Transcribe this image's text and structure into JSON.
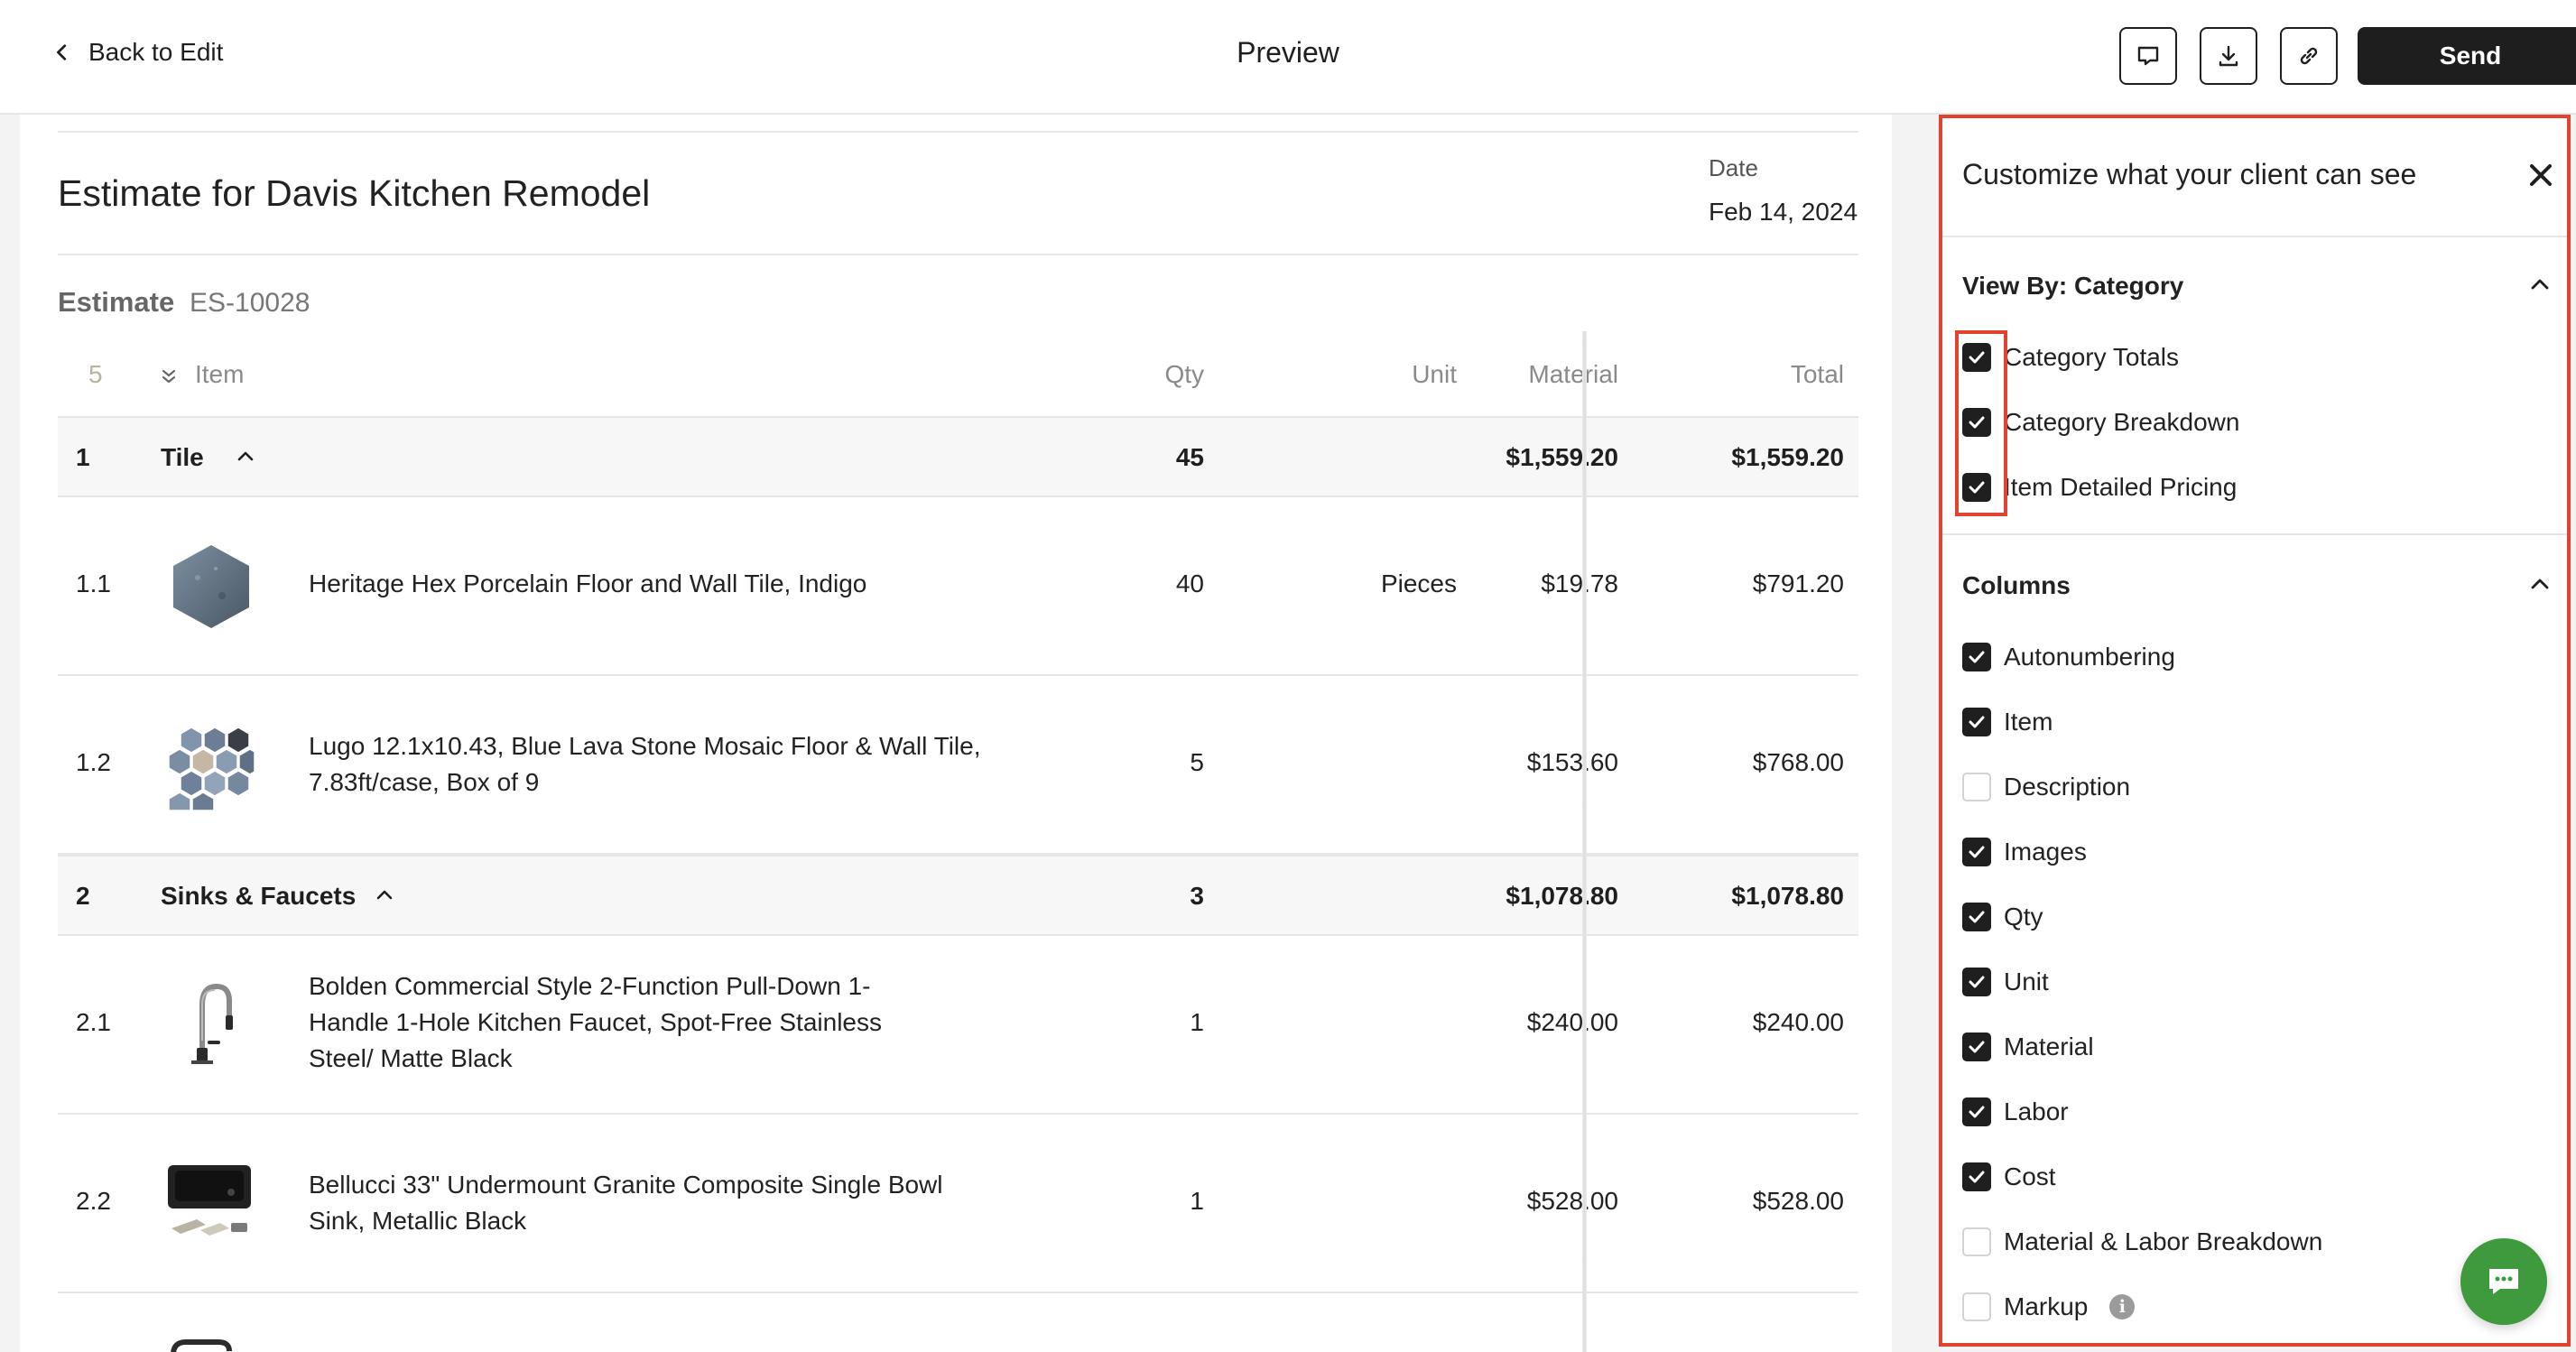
{
  "header": {
    "back_label": "Back to Edit",
    "title": "Preview",
    "send_label": "Send"
  },
  "document": {
    "title": "Estimate for Davis Kitchen Remodel",
    "date_label": "Date",
    "date_value": "Feb 14, 2024",
    "estimate_label": "Estimate",
    "estimate_number": "ES-10028",
    "columns": {
      "count": "5",
      "item": "Item",
      "qty": "Qty",
      "unit": "Unit",
      "material": "Material",
      "total": "Total"
    },
    "rows": [
      {
        "kind": "category",
        "num": "1",
        "name": "Tile",
        "qty": "45",
        "unit": "",
        "material": "$1,559.20",
        "total": "$1,559.20"
      },
      {
        "kind": "item",
        "num": "1.1",
        "name": "Heritage Hex Porcelain Floor and Wall Tile, Indigo",
        "qty": "40",
        "unit": "Pieces",
        "material": "$19.78",
        "total": "$791.20",
        "image": "hex-tile-image"
      },
      {
        "kind": "item",
        "num": "1.2",
        "name": "Lugo 12.1x10.43, Blue Lava Stone Mosaic Floor & Wall Tile, 7.83ft/case, Box of 9",
        "qty": "5",
        "unit": "",
        "material": "$153.60",
        "total": "$768.00",
        "image": "mosaic-tile-image"
      },
      {
        "kind": "category",
        "num": "2",
        "name": "Sinks & Faucets",
        "qty": "3",
        "unit": "",
        "material": "$1,078.80",
        "total": "$1,078.80"
      },
      {
        "kind": "item",
        "num": "2.1",
        "name": "Bolden Commercial Style 2-Function Pull-Down 1-Handle 1-Hole Kitchen Faucet, Spot-Free Stainless Steel/ Matte Black",
        "qty": "1",
        "unit": "",
        "material": "$240.00",
        "total": "$240.00",
        "image": "faucet-image"
      },
      {
        "kind": "item",
        "num": "2.2",
        "name": "Bellucci 33\" Undermount Granite Composite Single Bowl Sink, Metallic Black",
        "qty": "1",
        "unit": "",
        "material": "$528.00",
        "total": "$528.00",
        "image": "sink-image"
      }
    ]
  },
  "panel": {
    "title": "Customize what your client can see",
    "view_section": {
      "title": "View By: Category",
      "options": [
        {
          "label": "Category Totals",
          "checked": true
        },
        {
          "label": "Category Breakdown",
          "checked": true
        },
        {
          "label": "Item Detailed Pricing",
          "checked": true
        }
      ]
    },
    "columns_section": {
      "title": "Columns",
      "options": [
        {
          "label": "Autonumbering",
          "checked": true
        },
        {
          "label": "Item",
          "checked": true
        },
        {
          "label": "Description",
          "checked": false
        },
        {
          "label": "Images",
          "checked": true
        },
        {
          "label": "Qty",
          "checked": true
        },
        {
          "label": "Unit",
          "checked": true
        },
        {
          "label": "Material",
          "checked": true
        },
        {
          "label": "Labor",
          "checked": true
        },
        {
          "label": "Cost",
          "checked": true
        },
        {
          "label": "Material & Labor Breakdown",
          "checked": false
        },
        {
          "label": "Markup",
          "checked": false,
          "info_icon": true
        }
      ]
    }
  },
  "colors": {
    "highlight": "#e2432f",
    "chat_button": "#3e9a3c",
    "primary_button": "#1e1e1e"
  },
  "icons": [
    "chevron-left-icon",
    "comment-icon",
    "download-icon",
    "link-icon",
    "close-icon",
    "chevron-up-icon",
    "collapse-all-icon",
    "info-icon",
    "chat-icon"
  ]
}
